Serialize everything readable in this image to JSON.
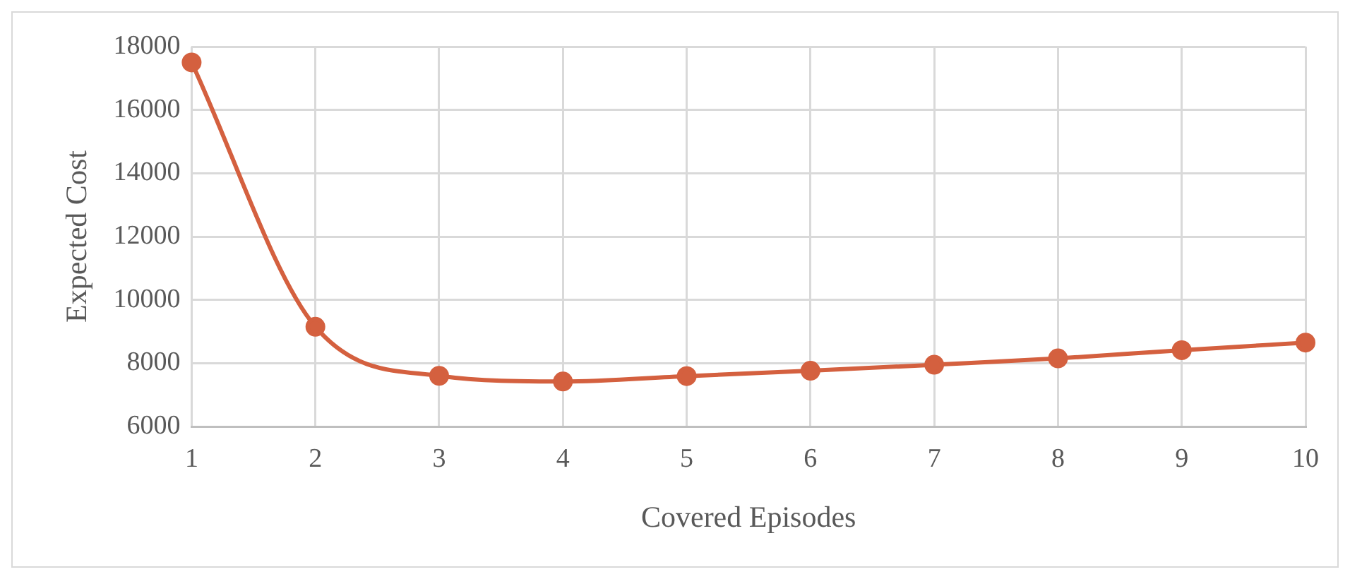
{
  "chart_data": {
    "type": "line",
    "xlabel": "Covered Episodes",
    "ylabel": "Expected Cost",
    "categories": [
      "1",
      "2",
      "3",
      "4",
      "5",
      "6",
      "7",
      "8",
      "9",
      "10"
    ],
    "series": [
      {
        "color": "#d4603f",
        "values": [
          17500,
          9150,
          7600,
          7420,
          7590,
          7760,
          7950,
          8150,
          8410,
          8650
        ]
      }
    ],
    "ylim": [
      6000,
      18000
    ],
    "yticks": [
      6000,
      8000,
      10000,
      12000,
      14000,
      16000,
      18000
    ],
    "grid": true,
    "legend": false,
    "marker": "circle",
    "line_style": "solid"
  }
}
